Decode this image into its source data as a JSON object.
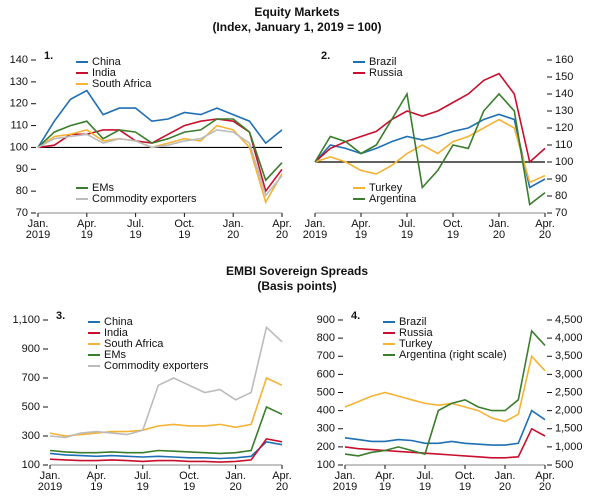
{
  "sections": [
    {
      "title": "Equity Markets",
      "subtitle": "(Index, January 1, 2019 = 100)"
    },
    {
      "title": "EMBI Sovereign Spreads",
      "subtitle": "(Basis points)"
    }
  ],
  "chart_data": [
    {
      "type": "line",
      "title": "1.",
      "x": [
        "2019-01",
        "2019-02",
        "2019-03",
        "2019-04",
        "2019-05",
        "2019-06",
        "2019-07",
        "2019-08",
        "2019-09",
        "2019-10",
        "2019-11",
        "2019-12",
        "2020-01",
        "2020-02",
        "2020-03",
        "2020-04"
      ],
      "xticks": [
        {
          "value": "2019-01",
          "label": [
            "Jan.",
            "2019"
          ]
        },
        {
          "value": "2019-04",
          "label": [
            "Apr.",
            "19"
          ]
        },
        {
          "value": "2019-07",
          "label": [
            "Jul.",
            "19"
          ]
        },
        {
          "value": "2019-10",
          "label": [
            "Oct.",
            "19"
          ]
        },
        {
          "value": "2020-01",
          "label": [
            "Jan.",
            "20"
          ]
        },
        {
          "value": "2020-04",
          "label": [
            "Apr.",
            "20"
          ]
        }
      ],
      "ylim": [
        70,
        140
      ],
      "yticks": [
        70,
        80,
        90,
        100,
        110,
        120,
        130,
        140
      ],
      "y_axis_side": "left",
      "reference_line": 100,
      "series": [
        {
          "name": "China",
          "color": "#1f6fb5",
          "legend": "upper left",
          "values": [
            100,
            112,
            122,
            126,
            115,
            118,
            118,
            112,
            113,
            116,
            115,
            118,
            115,
            112,
            102,
            108
          ]
        },
        {
          "name": "India",
          "color": "#c8102e",
          "legend": "upper left",
          "values": [
            100,
            101,
            106,
            106,
            108,
            108,
            103,
            102,
            106,
            110,
            112,
            113,
            112,
            107,
            80,
            90
          ]
        },
        {
          "name": "South Africa",
          "color": "#f5b335",
          "legend": "upper left",
          "values": [
            100,
            105,
            106,
            108,
            103,
            104,
            103,
            100,
            102,
            104,
            103,
            110,
            108,
            100,
            75,
            88
          ]
        },
        {
          "name": "EMs",
          "color": "#3a7d2c",
          "legend": "lower left",
          "values": [
            100,
            107,
            110,
            112,
            104,
            108,
            107,
            102,
            104,
            107,
            108,
            113,
            113,
            107,
            85,
            93
          ]
        },
        {
          "name": "Commodity exporters",
          "color": "#bbbbbb",
          "legend": "lower left",
          "values": [
            100,
            104,
            105,
            106,
            102,
            104,
            103,
            100,
            101,
            103,
            104,
            108,
            107,
            102,
            78,
            87
          ]
        }
      ]
    },
    {
      "type": "line",
      "title": "2.",
      "x": [
        "2019-01",
        "2019-02",
        "2019-03",
        "2019-04",
        "2019-05",
        "2019-06",
        "2019-07",
        "2019-08",
        "2019-09",
        "2019-10",
        "2019-11",
        "2019-12",
        "2020-01",
        "2020-02",
        "2020-03",
        "2020-04"
      ],
      "xticks": [
        {
          "value": "2019-01",
          "label": [
            "Jan.",
            "2019"
          ]
        },
        {
          "value": "2019-04",
          "label": [
            "Apr.",
            "19"
          ]
        },
        {
          "value": "2019-07",
          "label": [
            "Jul.",
            "19"
          ]
        },
        {
          "value": "2019-10",
          "label": [
            "Oct.",
            "19"
          ]
        },
        {
          "value": "2020-01",
          "label": [
            "Jan.",
            "20"
          ]
        },
        {
          "value": "2020-04",
          "label": [
            "Apr.",
            "20"
          ]
        }
      ],
      "ylim": [
        70,
        160
      ],
      "yticks": [
        70,
        80,
        90,
        100,
        110,
        120,
        130,
        140,
        150,
        160
      ],
      "y_axis_side": "right",
      "reference_line": 100,
      "series": [
        {
          "name": "Brazil",
          "color": "#1f6fb5",
          "legend": "upper left",
          "values": [
            100,
            110,
            108,
            105,
            108,
            112,
            115,
            113,
            115,
            118,
            120,
            125,
            128,
            125,
            85,
            90
          ]
        },
        {
          "name": "Russia",
          "color": "#c8102e",
          "legend": "upper left",
          "values": [
            100,
            108,
            112,
            115,
            118,
            125,
            130,
            127,
            130,
            135,
            140,
            148,
            152,
            140,
            100,
            108
          ]
        },
        {
          "name": "Turkey",
          "color": "#f5b335",
          "legend": "lower left",
          "values": [
            100,
            103,
            100,
            95,
            93,
            98,
            105,
            110,
            105,
            112,
            115,
            120,
            125,
            120,
            88,
            92
          ]
        },
        {
          "name": "Argentina",
          "color": "#3a7d2c",
          "legend": "lower left",
          "values": [
            100,
            115,
            112,
            105,
            110,
            125,
            140,
            85,
            95,
            110,
            108,
            130,
            140,
            130,
            75,
            82
          ]
        }
      ]
    },
    {
      "type": "line",
      "title": "3.",
      "x": [
        "2019-01",
        "2019-02",
        "2019-03",
        "2019-04",
        "2019-05",
        "2019-06",
        "2019-07",
        "2019-08",
        "2019-09",
        "2019-10",
        "2019-11",
        "2019-12",
        "2020-01",
        "2020-02",
        "2020-03",
        "2020-04"
      ],
      "xticks": [
        {
          "value": "2019-01",
          "label": [
            "Jan.",
            "2019"
          ]
        },
        {
          "value": "2019-04",
          "label": [
            "Apr.",
            "19"
          ]
        },
        {
          "value": "2019-07",
          "label": [
            "Jul.",
            "19"
          ]
        },
        {
          "value": "2019-10",
          "label": [
            "Oct.",
            "19"
          ]
        },
        {
          "value": "2020-01",
          "label": [
            "Jan.",
            "20"
          ]
        },
        {
          "value": "2020-04",
          "label": [
            "Apr.",
            "20"
          ]
        }
      ],
      "ylim": [
        100,
        1100
      ],
      "yticks": [
        100,
        300,
        500,
        700,
        900,
        {
          "value": 1100,
          "label": "1,100"
        }
      ],
      "y_axis_side": "left",
      "series": [
        {
          "name": "China",
          "color": "#1f6fb5",
          "legend": "upper left",
          "values": [
            180,
            170,
            165,
            160,
            165,
            160,
            155,
            160,
            155,
            150,
            150,
            145,
            150,
            160,
            260,
            240
          ]
        },
        {
          "name": "India",
          "color": "#c8102e",
          "legend": "upper left",
          "values": [
            140,
            135,
            130,
            130,
            135,
            130,
            125,
            130,
            130,
            125,
            125,
            120,
            125,
            135,
            280,
            260
          ]
        },
        {
          "name": "South Africa",
          "color": "#f5b335",
          "legend": "upper left",
          "values": [
            320,
            300,
            310,
            320,
            330,
            330,
            340,
            370,
            380,
            370,
            370,
            380,
            360,
            380,
            700,
            650
          ]
        },
        {
          "name": "EMs",
          "color": "#3a7d2c",
          "legend": "upper left",
          "values": [
            200,
            190,
            185,
            185,
            190,
            185,
            185,
            200,
            195,
            190,
            185,
            180,
            185,
            200,
            500,
            450
          ]
        },
        {
          "name": "Commodity exporters",
          "color": "#bbbbbb",
          "legend": "upper left",
          "values": [
            300,
            290,
            320,
            330,
            320,
            310,
            340,
            650,
            700,
            650,
            600,
            620,
            550,
            600,
            1050,
            950
          ]
        }
      ]
    },
    {
      "type": "line",
      "title": "4.",
      "x": [
        "2019-01",
        "2019-02",
        "2019-03",
        "2019-04",
        "2019-05",
        "2019-06",
        "2019-07",
        "2019-08",
        "2019-09",
        "2019-10",
        "2019-11",
        "2019-12",
        "2020-01",
        "2020-02",
        "2020-03",
        "2020-04"
      ],
      "xticks": [
        {
          "value": "2019-01",
          "label": [
            "Jan.",
            "2019"
          ]
        },
        {
          "value": "2019-04",
          "label": [
            "Apr.",
            "19"
          ]
        },
        {
          "value": "2019-07",
          "label": [
            "Jul.",
            "19"
          ]
        },
        {
          "value": "2019-10",
          "label": [
            "Oct.",
            "19"
          ]
        },
        {
          "value": "2020-01",
          "label": [
            "Jan.",
            "20"
          ]
        },
        {
          "value": "2020-04",
          "label": [
            "Apr.",
            "20"
          ]
        }
      ],
      "ylim": [
        100,
        900
      ],
      "yticks": [
        100,
        200,
        300,
        400,
        500,
        600,
        700,
        800,
        900
      ],
      "y_axis_side": "left",
      "y2lim": [
        500,
        4500
      ],
      "y2ticks": [
        500,
        {
          "value": 1000,
          "label": "1,000"
        },
        {
          "value": 1500,
          "label": "1,500"
        },
        {
          "value": 2000,
          "label": "2,000"
        },
        {
          "value": 2500,
          "label": "2,500"
        },
        {
          "value": 3000,
          "label": "3,000"
        },
        {
          "value": 3500,
          "label": "3,500"
        },
        {
          "value": 4000,
          "label": "4,000"
        },
        {
          "value": 4500,
          "label": "4,500"
        }
      ],
      "series": [
        {
          "name": "Brazil",
          "color": "#1f6fb5",
          "legend": "upper left",
          "values": [
            250,
            240,
            230,
            230,
            240,
            235,
            220,
            220,
            230,
            220,
            215,
            210,
            210,
            220,
            400,
            350
          ]
        },
        {
          "name": "Russia",
          "color": "#c8102e",
          "legend": "upper left",
          "values": [
            200,
            190,
            185,
            180,
            175,
            170,
            165,
            160,
            155,
            150,
            145,
            140,
            140,
            145,
            300,
            260
          ]
        },
        {
          "name": "Turkey",
          "color": "#f5b335",
          "legend": "upper left",
          "values": [
            420,
            450,
            480,
            500,
            480,
            460,
            440,
            430,
            440,
            420,
            400,
            360,
            340,
            380,
            700,
            620
          ]
        },
        {
          "name": "Argentina (right scale)",
          "color": "#3a7d2c",
          "legend": "upper left",
          "axis": "y2",
          "values": [
            800,
            750,
            850,
            900,
            1000,
            900,
            800,
            2000,
            2200,
            2300,
            2100,
            2000,
            2000,
            2300,
            4200,
            3800
          ]
        }
      ]
    }
  ]
}
